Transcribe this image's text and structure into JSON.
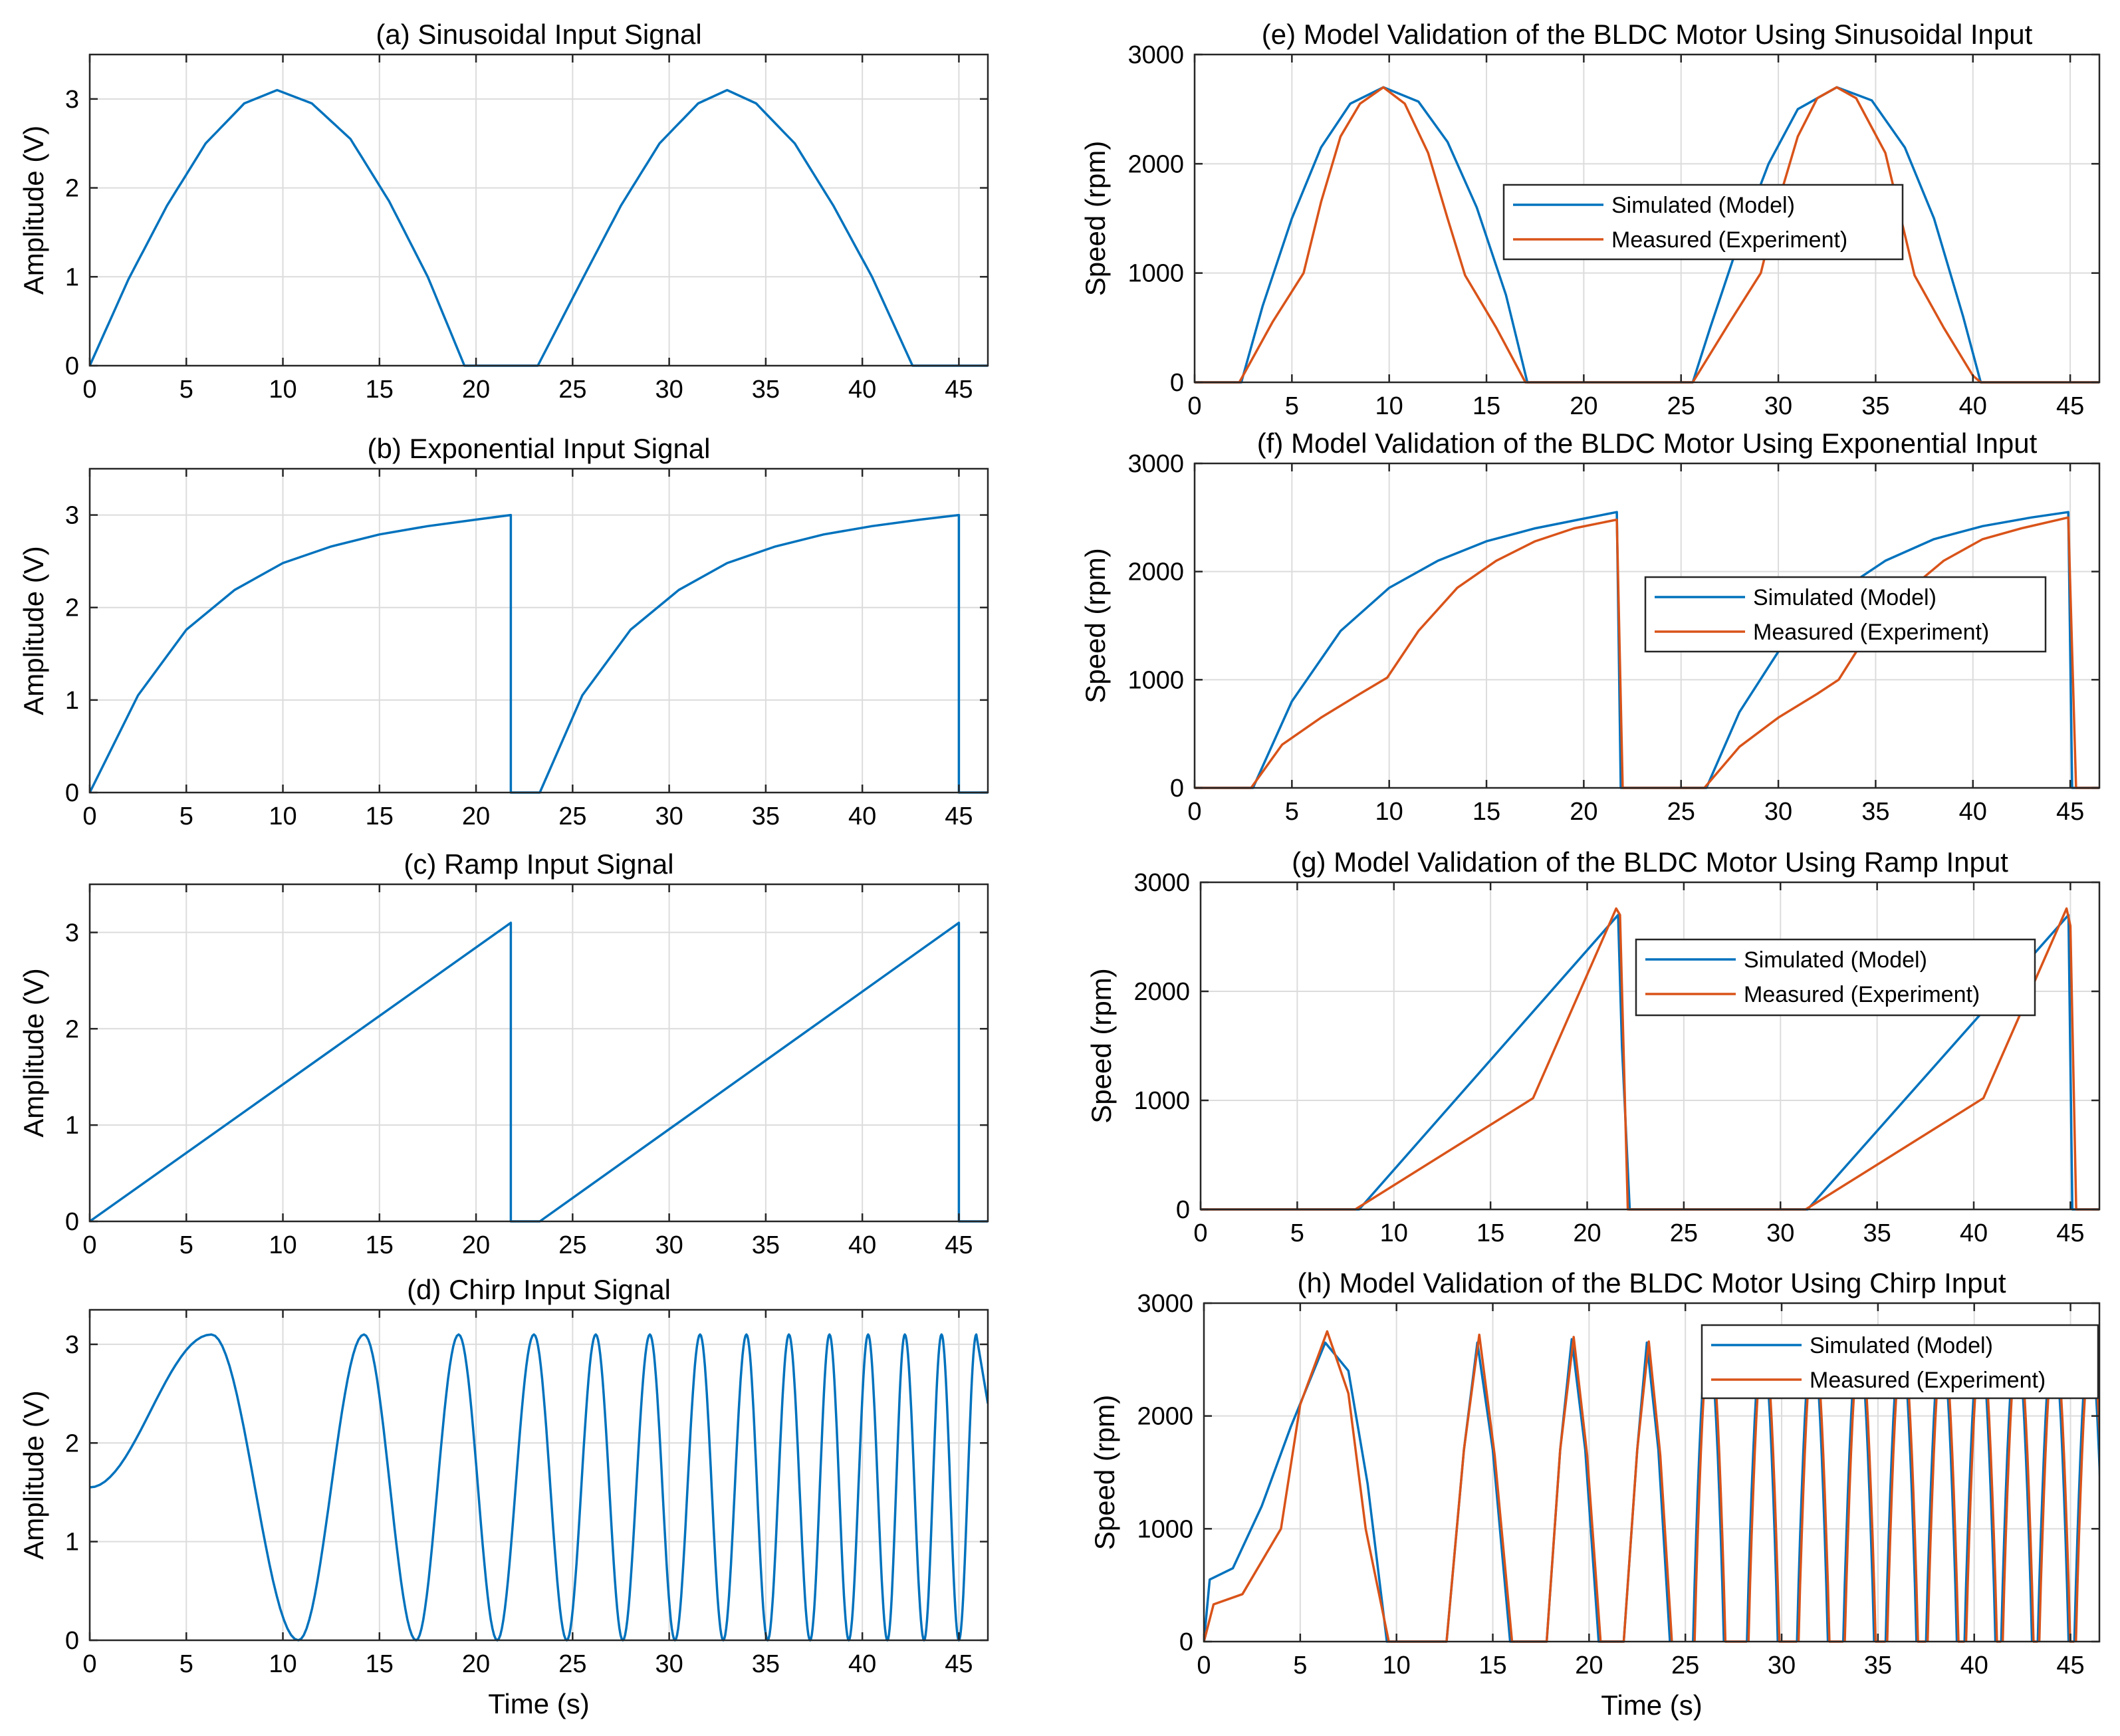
{
  "figure_colors": {
    "simulated": "#0072BD",
    "measured": "#D95319",
    "grid": "#DCDCDC",
    "axes": "#262626"
  },
  "chart_data": [
    {
      "id": "a",
      "type": "line",
      "title": "(a) Sinusoidal Input Signal",
      "xlabel": "",
      "ylabel": "Amplitude (V)",
      "xlim": [
        0,
        46.5
      ],
      "ylim": [
        0,
        3.5
      ],
      "xticks": [
        0,
        5,
        10,
        15,
        20,
        25,
        30,
        35,
        40,
        45
      ],
      "yticks": [
        0,
        1,
        2,
        3
      ],
      "grid": true,
      "series": [
        {
          "name": "Input",
          "color": "#0072BD",
          "kind": "sine",
          "x": [
            0,
            2,
            4,
            6,
            8,
            9.7,
            11.5,
            13.5,
            15.5,
            17.5,
            19.4,
            23.2,
            25.5,
            27.5,
            29.5,
            31.5,
            33,
            34.5,
            36.5,
            38.5,
            40.5,
            42.6,
            46.5
          ],
          "y": [
            0,
            0.97,
            1.8,
            2.5,
            2.95,
            3.1,
            2.95,
            2.55,
            1.85,
            1.0,
            0,
            0,
            0.97,
            1.8,
            2.5,
            2.95,
            3.1,
            2.95,
            2.5,
            1.8,
            1.0,
            0,
            0
          ]
        }
      ]
    },
    {
      "id": "b",
      "type": "line",
      "title": "(b) Exponential Input Signal",
      "xlabel": "",
      "ylabel": "Amplitude (V)",
      "xlim": [
        0,
        46.5
      ],
      "ylim": [
        0,
        3.5
      ],
      "xticks": [
        0,
        5,
        10,
        15,
        20,
        25,
        30,
        35,
        40,
        45
      ],
      "yticks": [
        0,
        1,
        2,
        3
      ],
      "grid": true,
      "series": [
        {
          "name": "Input",
          "color": "#0072BD",
          "x": [
            0,
            2.5,
            5,
            7.5,
            10,
            12.5,
            15,
            17.5,
            20,
            21.8,
            21.8,
            23.3,
            25.5,
            28,
            30.5,
            33,
            35.5,
            38,
            40.5,
            43,
            45,
            45,
            46.5
          ],
          "y": [
            0,
            1.05,
            1.76,
            2.19,
            2.48,
            2.66,
            2.79,
            2.88,
            2.95,
            3.0,
            0,
            0,
            1.05,
            1.76,
            2.19,
            2.48,
            2.66,
            2.79,
            2.88,
            2.95,
            3.0,
            0,
            0
          ]
        }
      ]
    },
    {
      "id": "c",
      "type": "line",
      "title": "(c) Ramp Input Signal",
      "xlabel": "",
      "ylabel": "Amplitude (V)",
      "xlim": [
        0,
        46.5
      ],
      "ylim": [
        0,
        3.5
      ],
      "xticks": [
        0,
        5,
        10,
        15,
        20,
        25,
        30,
        35,
        40,
        45
      ],
      "yticks": [
        0,
        1,
        2,
        3
      ],
      "grid": true,
      "series": [
        {
          "name": "Input",
          "color": "#0072BD",
          "x": [
            0,
            21.8,
            21.8,
            23.3,
            45,
            45,
            46.5
          ],
          "y": [
            0,
            3.1,
            0,
            0,
            3.1,
            0,
            0
          ]
        }
      ]
    },
    {
      "id": "d",
      "type": "line",
      "title": "(d) Chirp Input Signal",
      "xlabel": "Time (s)",
      "ylabel": "Amplitude (V)",
      "xlim": [
        0,
        46.5
      ],
      "ylim": [
        0,
        3.35
      ],
      "xticks": [
        0,
        5,
        10,
        15,
        20,
        25,
        30,
        35,
        40,
        45
      ],
      "yticks": [
        0,
        1,
        2,
        3
      ],
      "grid": true,
      "series": [
        {
          "name": "Input",
          "color": "#0072BD",
          "kind": "chirp",
          "peaks": [
            6.3,
            14.2,
            19.1,
            23.0,
            26.2,
            29.0,
            31.6,
            34.0,
            36.2,
            38.3,
            40.3,
            42.2,
            44.1,
            45.9
          ],
          "minima": [
            0,
            10.8,
            16.9,
            21.1,
            24.7,
            27.6,
            30.3,
            32.8,
            35.1,
            37.3,
            39.3,
            41.3,
            43.2,
            45.0
          ],
          "amplitude_max": 3.1,
          "amplitude_min": 0,
          "start_value": 1.55
        }
      ]
    },
    {
      "id": "e",
      "type": "line",
      "title": "(e) Model Validation of the BLDC Motor Using Sinusoidal Input",
      "xlabel": "",
      "ylabel": "Speed (rpm)",
      "xlim": [
        0,
        46.5
      ],
      "ylim": [
        0,
        3000
      ],
      "xticks": [
        0,
        5,
        10,
        15,
        20,
        25,
        30,
        35,
        40,
        45
      ],
      "yticks": [
        0,
        1000,
        2000,
        3000
      ],
      "grid": true,
      "legend": {
        "position": "center-right",
        "entries": [
          "Simulated (Model)",
          "Measured (Experiment)"
        ]
      },
      "series": [
        {
          "name": "Simulated (Model)",
          "color": "#0072BD",
          "x": [
            0,
            2.4,
            3.5,
            5,
            6.5,
            8,
            9.7,
            11.5,
            13,
            14.5,
            16,
            17.1,
            25.6,
            26.5,
            28,
            29.5,
            31,
            33,
            34.8,
            36.5,
            38,
            39.5,
            40.4,
            46.5
          ],
          "y": [
            0,
            0,
            700,
            1500,
            2150,
            2550,
            2700,
            2570,
            2200,
            1600,
            800,
            0,
            0,
            500,
            1300,
            2000,
            2500,
            2700,
            2580,
            2150,
            1500,
            600,
            0,
            0
          ]
        },
        {
          "name": "Measured (Experiment)",
          "color": "#D95319",
          "x": [
            0,
            2.3,
            4,
            5.6,
            6.5,
            7.5,
            8.5,
            9.7,
            10.8,
            12,
            13,
            13.9,
            15.5,
            17,
            25.6,
            27.5,
            29.1,
            30,
            31,
            32,
            33,
            34,
            35.5,
            37,
            38.5,
            40,
            40.4,
            46.5
          ],
          "y": [
            0,
            0,
            550,
            1000,
            1650,
            2250,
            2550,
            2700,
            2550,
            2100,
            1500,
            980,
            500,
            0,
            0,
            550,
            1000,
            1650,
            2250,
            2600,
            2700,
            2600,
            2100,
            980,
            500,
            60,
            0,
            0
          ]
        }
      ]
    },
    {
      "id": "f",
      "type": "line",
      "title": "(f) Model Validation of the BLDC Motor Using Exponential Input",
      "xlabel": "",
      "ylabel": "Speed (rpm)",
      "xlim": [
        0,
        46.5
      ],
      "ylim": [
        0,
        3000
      ],
      "xticks": [
        0,
        5,
        10,
        15,
        20,
        25,
        30,
        35,
        40,
        45
      ],
      "yticks": [
        0,
        1000,
        2000,
        3000
      ],
      "grid": true,
      "legend": {
        "position": "center-right",
        "entries": [
          "Simulated (Model)",
          "Measured (Experiment)"
        ]
      },
      "series": [
        {
          "name": "Simulated (Model)",
          "color": "#0072BD",
          "x": [
            0,
            3,
            5,
            7.5,
            10,
            12.5,
            15,
            17.5,
            20,
            21.7,
            21.9,
            26.3,
            28,
            30.5,
            33,
            35.5,
            38,
            40.5,
            43,
            44.9,
            45.1,
            46.5
          ],
          "y": [
            0,
            0,
            800,
            1450,
            1850,
            2100,
            2280,
            2400,
            2490,
            2550,
            0,
            0,
            700,
            1400,
            1800,
            2100,
            2300,
            2420,
            2500,
            2550,
            0,
            0
          ]
        },
        {
          "name": "Measured (Experiment)",
          "color": "#D95319",
          "x": [
            0,
            2.9,
            4.5,
            6.5,
            8.5,
            9.9,
            11.5,
            13.5,
            15.5,
            17.5,
            19.5,
            21.7,
            22,
            26.2,
            28,
            30,
            32,
            33.1,
            34.5,
            36.5,
            38.5,
            40.5,
            42.5,
            44.9,
            45.3,
            46.5
          ],
          "y": [
            0,
            0,
            400,
            650,
            870,
            1020,
            1450,
            1850,
            2100,
            2280,
            2400,
            2480,
            0,
            0,
            380,
            650,
            870,
            1000,
            1400,
            1800,
            2100,
            2300,
            2400,
            2500,
            0,
            0
          ]
        }
      ]
    },
    {
      "id": "g",
      "type": "line",
      "title": "(g) Model Validation of the BLDC Motor Using Ramp Input",
      "xlabel": "",
      "ylabel": "Speed (rpm)",
      "xlim": [
        0,
        46.5
      ],
      "ylim": [
        0,
        3000
      ],
      "xticks": [
        0,
        5,
        10,
        15,
        20,
        25,
        30,
        35,
        40,
        45
      ],
      "yticks": [
        0,
        1000,
        2000,
        3000
      ],
      "grid": true,
      "legend": {
        "position": "top-right",
        "entries": [
          "Simulated (Model)",
          "Measured (Experiment)"
        ]
      },
      "series": [
        {
          "name": "Simulated (Model)",
          "color": "#0072BD",
          "x": [
            0,
            8.2,
            21.6,
            21.8,
            22.2,
            31.4,
            44.9,
            45.1,
            46.5
          ],
          "y": [
            0,
            0,
            2700,
            1500,
            0,
            0,
            2700,
            0,
            0
          ]
        },
        {
          "name": "Measured (Experiment)",
          "color": "#D95319",
          "x": [
            0,
            8,
            17.2,
            21.5,
            21.7,
            22.1,
            31.3,
            40.5,
            44.8,
            45,
            45.3,
            46.5
          ],
          "y": [
            0,
            0,
            1020,
            2760,
            2700,
            0,
            0,
            1020,
            2760,
            2600,
            0,
            0
          ]
        }
      ]
    },
    {
      "id": "h",
      "type": "line",
      "title": "(h) Model Validation of the BLDC Motor Using Chirp Input",
      "xlabel": "Time (s)",
      "ylabel": "Speed (rpm)",
      "xlim": [
        0,
        46.5
      ],
      "ylim": [
        0,
        3000
      ],
      "xticks": [
        0,
        5,
        10,
        15,
        20,
        25,
        30,
        35,
        40,
        45
      ],
      "yticks": [
        0,
        1000,
        2000,
        3000
      ],
      "grid": true,
      "legend": {
        "position": "top-right",
        "entries": [
          "Simulated (Model)",
          "Measured (Experiment)"
        ]
      },
      "series": [
        {
          "name": "Simulated (Model)",
          "color": "#0072BD",
          "x": [
            0,
            0.3,
            1.5,
            3,
            4.5,
            6.3,
            7.5,
            8.5,
            9.5,
            12.6,
            13.5,
            14.2,
            15,
            15.9,
            17.8,
            18.5,
            19.1,
            19.8,
            20.5,
            21.8,
            22.5,
            23.0,
            23.6,
            24.2
          ],
          "y": [
            0,
            550,
            650,
            1200,
            1900,
            2650,
            2400,
            1400,
            0,
            0,
            1700,
            2650,
            1700,
            0,
            0,
            1700,
            2680,
            1700,
            0,
            0,
            1700,
            2650,
            1700,
            0
          ]
        },
        {
          "name": "Measured (Experiment)",
          "color": "#D95319",
          "x": [
            0,
            0.5,
            2,
            4,
            5,
            6.4,
            7.5,
            8.4,
            9.6,
            12.6,
            13.5,
            14.3,
            15.1,
            16,
            17.8,
            18.5,
            19.2,
            19.9,
            20.6,
            21.8,
            22.5,
            23.1,
            23.7,
            24.3
          ],
          "y": [
            0,
            330,
            420,
            1000,
            2100,
            2750,
            2200,
            1000,
            0,
            0,
            1700,
            2720,
            1650,
            0,
            0,
            1700,
            2700,
            1650,
            0,
            0,
            1700,
            2660,
            1650,
            0
          ]
        }
      ],
      "continuation_peaks": [
        26.2,
        29.0,
        31.6,
        34.0,
        36.2,
        38.3,
        40.3,
        42.2,
        44.1,
        46.0
      ],
      "continuation_peak_value": 2680
    }
  ]
}
